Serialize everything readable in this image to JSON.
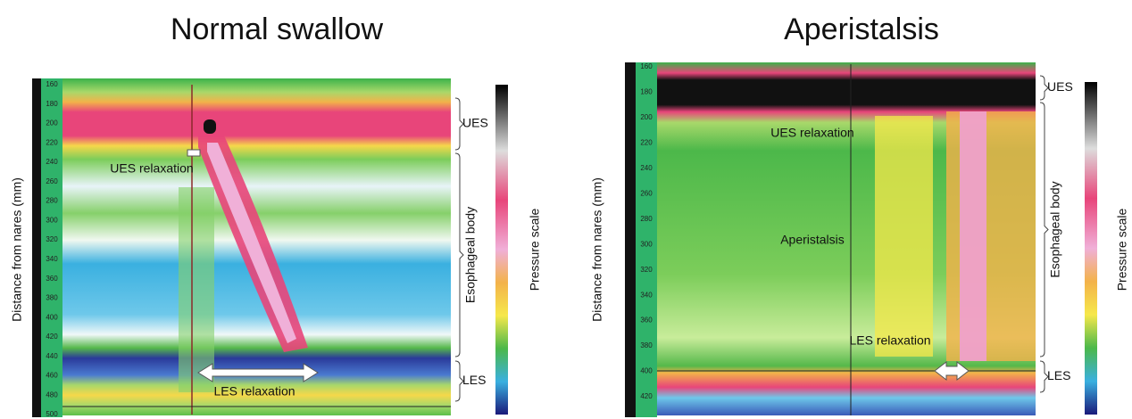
{
  "panels": [
    {
      "title": "Normal swallow",
      "y_axis_label": "Distance from nares (mm)",
      "yticks": [
        160,
        180,
        200,
        220,
        240,
        260,
        280,
        300,
        320,
        340,
        360,
        380,
        400,
        420,
        440,
        460,
        480,
        500
      ],
      "regions": [
        "UES",
        "Esophageal body",
        "LES"
      ],
      "annotations": [
        "UES relaxation",
        "LES relaxation"
      ],
      "scale_label": "Pressure scale"
    },
    {
      "title": "Aperistalsis",
      "y_axis_label": "Distance from nares (mm)",
      "yticks": [
        160,
        180,
        200,
        220,
        240,
        260,
        280,
        300,
        320,
        340,
        360,
        380,
        400,
        420
      ],
      "regions": [
        "UES",
        "Esophageal body",
        "LES"
      ],
      "annotations": [
        "UES relaxation",
        "Aperistalsis",
        "LES relaxation"
      ],
      "scale_label": "Pressure scale"
    }
  ]
}
